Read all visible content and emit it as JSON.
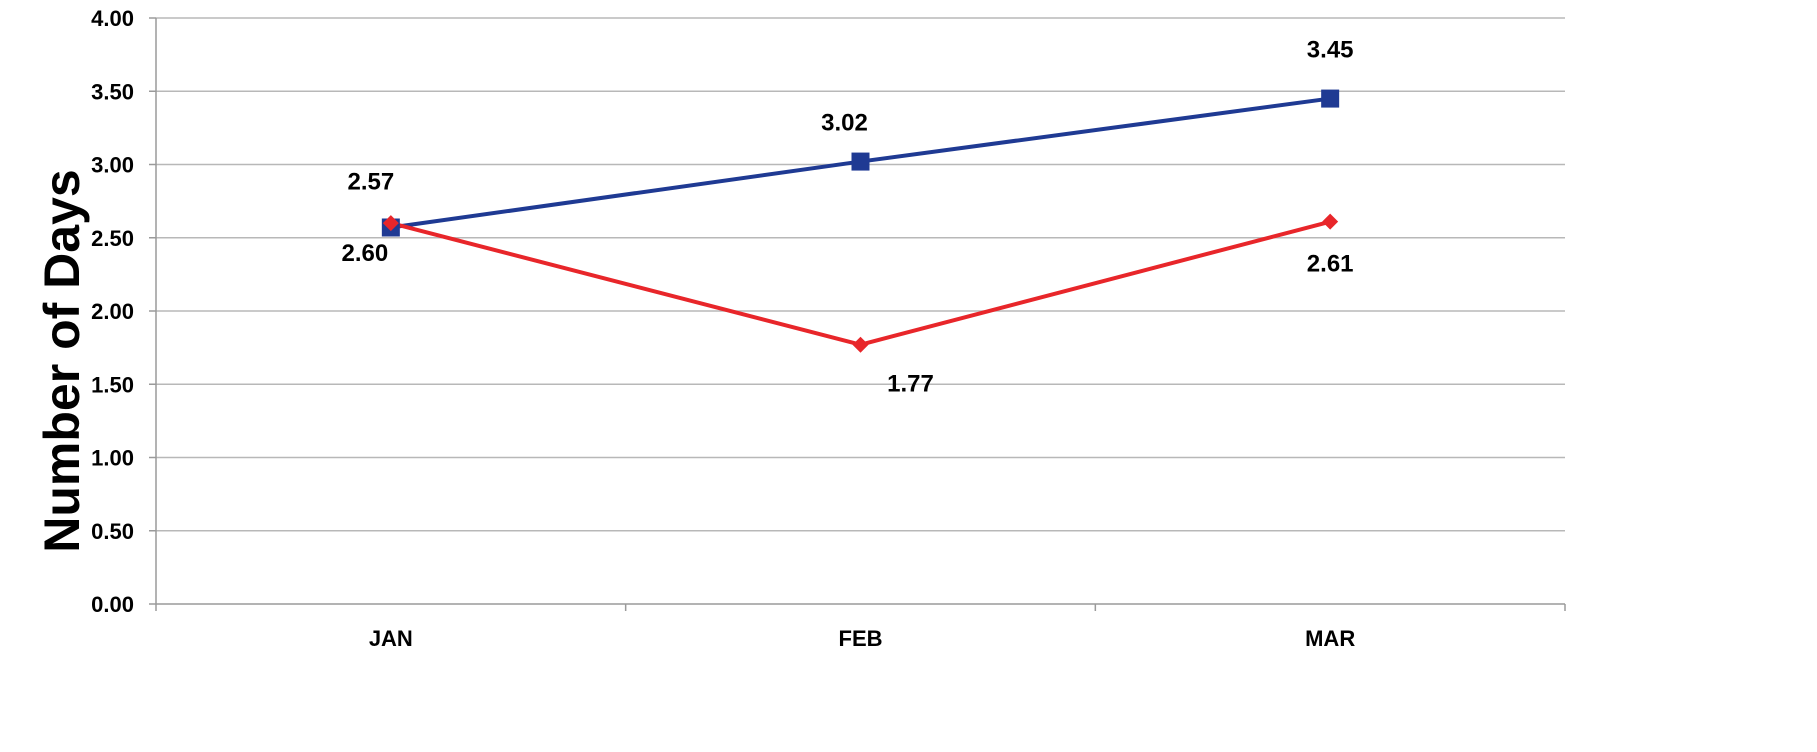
{
  "chart_data": {
    "type": "line",
    "categories": [
      "JAN",
      "FEB",
      "MAR"
    ],
    "ylabel": "Number of Days",
    "xlabel": "",
    "ylim": [
      0,
      4
    ],
    "yticks": [
      "0.00",
      "0.50",
      "1.00",
      "1.50",
      "2.00",
      "2.50",
      "3.00",
      "3.50",
      "4.00"
    ],
    "grid": true,
    "series": [
      {
        "values": [
          2.57,
          3.02,
          3.45
        ],
        "labels": [
          "2.57",
          "3.02",
          "3.45"
        ],
        "color": "#1f3a93",
        "marker": "square"
      },
      {
        "values": [
          2.6,
          1.77,
          2.61
        ],
        "labels": [
          "2.60",
          "1.77",
          "2.61"
        ],
        "color": "#e8262a",
        "marker": "diamond"
      }
    ]
  }
}
